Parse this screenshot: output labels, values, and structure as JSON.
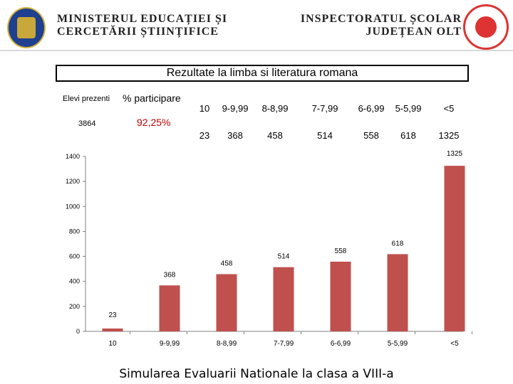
{
  "header": {
    "ministry_line1": "MINISTERUL EDUCAȚIEI ȘI",
    "ministry_line2": "CERCETĂRII ȘTIINȚIFICE",
    "inspectorat_line1": "INSPECTORATUL ȘCOLAR",
    "inspectorat_line2": "JUDEȚEAN OLT"
  },
  "table": {
    "title": "Rezultate la limba si literatura romana",
    "elevi_label": "Elevi prezenti",
    "elevi_value": "3864",
    "participare_label": "% participare",
    "participare_value": "92,25%",
    "grades": [
      "10",
      "9-9,99",
      "8-8,99",
      "7-7,99",
      "6-6,99",
      "5-5,99",
      "<5"
    ],
    "counts": [
      "23",
      "368",
      "458",
      "514",
      "558",
      "618",
      "1325"
    ]
  },
  "chart_data": {
    "type": "bar",
    "categories": [
      "10",
      "9-9,99",
      "8-8,99",
      "7-7,99",
      "6-6,99",
      "5-5,99",
      "<5"
    ],
    "values": [
      23,
      368,
      458,
      514,
      558,
      618,
      1325
    ],
    "title": "",
    "xlabel": "",
    "ylabel": "",
    "ylim": [
      0,
      1400
    ],
    "yticks": [
      0,
      200,
      400,
      600,
      800,
      1000,
      1200,
      1400
    ],
    "bar_color": "#c0504d",
    "grid": false
  },
  "footer": {
    "title": "Simularea Evaluarii Nationale la clasa a VIII-a"
  }
}
